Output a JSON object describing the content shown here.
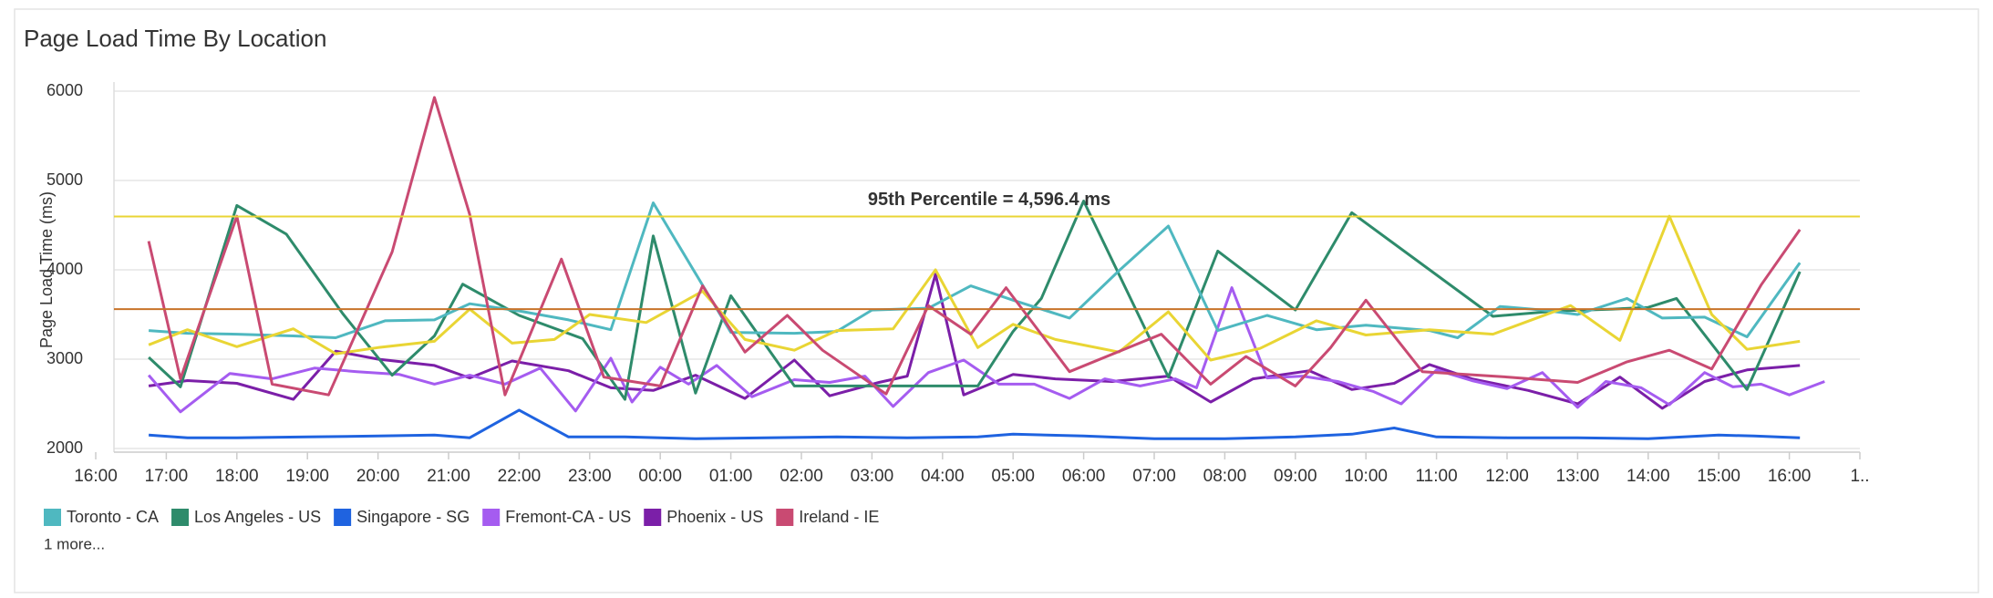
{
  "chart_data": {
    "type": "line",
    "title": "Page Load Time By Location",
    "ylabel": "Page Load Time (ms)",
    "xlim": [
      16,
      41
    ],
    "ylim": [
      2000,
      6000
    ],
    "yticks": [
      2000,
      3000,
      4000,
      5000,
      6000
    ],
    "xticks": [
      {
        "value": 16,
        "label": "16:00"
      },
      {
        "value": 17,
        "label": "17:00"
      },
      {
        "value": 18,
        "label": "18:00"
      },
      {
        "value": 19,
        "label": "19:00"
      },
      {
        "value": 20,
        "label": "20:00"
      },
      {
        "value": 21,
        "label": "21:00"
      },
      {
        "value": 22,
        "label": "22:00"
      },
      {
        "value": 23,
        "label": "23:00"
      },
      {
        "value": 24,
        "label": "00:00"
      },
      {
        "value": 25,
        "label": "01:00"
      },
      {
        "value": 26,
        "label": "02:00"
      },
      {
        "value": 27,
        "label": "03:00"
      },
      {
        "value": 28,
        "label": "04:00"
      },
      {
        "value": 29,
        "label": "05:00"
      },
      {
        "value": 30,
        "label": "06:00"
      },
      {
        "value": 31,
        "label": "07:00"
      },
      {
        "value": 32,
        "label": "08:00"
      },
      {
        "value": 33,
        "label": "09:00"
      },
      {
        "value": 34,
        "label": "10:00"
      },
      {
        "value": 35,
        "label": "11:00"
      },
      {
        "value": 36,
        "label": "12:00"
      },
      {
        "value": 37,
        "label": "13:00"
      },
      {
        "value": 38,
        "label": "14:00"
      },
      {
        "value": 39,
        "label": "15:00"
      },
      {
        "value": 40,
        "label": "16:00"
      },
      {
        "value": 41,
        "label": "1.."
      }
    ],
    "grid": true,
    "reference_lines": [
      {
        "value": 4596.4,
        "color": "#e9d534",
        "label": "95th Percentile = 4,596.4 ms"
      },
      {
        "value": 3560,
        "color": "#c8732a"
      }
    ],
    "legend_more": "1 more...",
    "series": [
      {
        "name": "Toronto - CA",
        "color": "#4fb8c0",
        "x": [
          16.75,
          17.3,
          18.0,
          18.8,
          19.4,
          20.1,
          20.8,
          21.3,
          22.0,
          22.7,
          23.3,
          23.9,
          25.0,
          25.9,
          26.5,
          27.0,
          27.8,
          28.4,
          29.0,
          29.8,
          30.5,
          31.2,
          31.9,
          32.6,
          33.3,
          34.0,
          34.9,
          35.3,
          35.9,
          36.5,
          37.0,
          37.7,
          38.2,
          38.8,
          39.4,
          40.15
        ],
        "values": [
          3320,
          3290,
          3280,
          3260,
          3240,
          3430,
          3440,
          3620,
          3540,
          3440,
          3330,
          4750,
          3300,
          3290,
          3310,
          3550,
          3570,
          3820,
          3660,
          3460,
          3990,
          4490,
          3320,
          3490,
          3330,
          3380,
          3320,
          3240,
          3590,
          3550,
          3500,
          3680,
          3460,
          3470,
          3250,
          4080
        ]
      },
      {
        "name": "Los Angeles - US",
        "color": "#2e8b6b",
        "x": [
          16.75,
          17.2,
          18.0,
          18.7,
          19.5,
          20.2,
          20.8,
          21.2,
          22.0,
          22.9,
          23.5,
          23.9,
          24.5,
          25.0,
          25.9,
          26.8,
          28.0,
          28.5,
          29.0,
          29.4,
          30.0,
          31.2,
          31.9,
          33.0,
          33.8,
          35.8,
          36.7,
          37.5,
          38.0,
          38.4,
          39.4,
          40.15
        ],
        "values": [
          3020,
          2690,
          4720,
          4400,
          3510,
          2820,
          3260,
          3840,
          3490,
          3230,
          2550,
          4380,
          2620,
          3710,
          2700,
          2700,
          2700,
          2700,
          3310,
          3680,
          4770,
          2800,
          4210,
          3550,
          4640,
          3480,
          3540,
          3560,
          3580,
          3680,
          2660,
          3980
        ]
      },
      {
        "name": "Singapore - SG",
        "color": "#1f63e0",
        "x": [
          16.75,
          17.3,
          18,
          19,
          20,
          20.8,
          21.3,
          22,
          22.7,
          23.5,
          24.5,
          25.5,
          26.5,
          27.5,
          28.5,
          29,
          30,
          31,
          32,
          33,
          33.8,
          34.4,
          35,
          36,
          37,
          38,
          39,
          39.5,
          40.15
        ],
        "values": [
          2150,
          2120,
          2120,
          2130,
          2140,
          2150,
          2120,
          2430,
          2130,
          2130,
          2110,
          2120,
          2130,
          2120,
          2130,
          2160,
          2140,
          2110,
          2110,
          2130,
          2160,
          2230,
          2130,
          2120,
          2120,
          2110,
          2150,
          2140,
          2120
        ]
      },
      {
        "name": "Fremont-CA - US",
        "color": "#a55cf0",
        "x": [
          16.75,
          17.2,
          17.9,
          18.5,
          19.1,
          19.7,
          20.3,
          20.8,
          21.3,
          21.8,
          22.3,
          22.8,
          23.3,
          23.6,
          24.0,
          24.4,
          24.8,
          25.3,
          25.9,
          26.4,
          26.9,
          27.3,
          27.8,
          28.3,
          28.8,
          29.3,
          29.8,
          30.3,
          30.8,
          31.3,
          31.6,
          32.1,
          32.6,
          33.1,
          33.6,
          34.1,
          34.5,
          35.0,
          35.5,
          36.0,
          36.5,
          37.0,
          37.4,
          37.9,
          38.3,
          38.8,
          39.2,
          39.6,
          40.0,
          40.5
        ],
        "values": [
          2820,
          2410,
          2840,
          2780,
          2900,
          2860,
          2830,
          2720,
          2820,
          2720,
          2900,
          2420,
          3010,
          2520,
          2910,
          2720,
          2930,
          2580,
          2770,
          2740,
          2810,
          2470,
          2850,
          2990,
          2720,
          2720,
          2560,
          2780,
          2700,
          2780,
          2680,
          3800,
          2790,
          2810,
          2750,
          2640,
          2500,
          2880,
          2760,
          2670,
          2850,
          2460,
          2750,
          2680,
          2490,
          2850,
          2690,
          2720,
          2600,
          2750
        ]
      },
      {
        "name": "Phoenix - US",
        "color": "#7b1fa8",
        "x": [
          16.75,
          17.3,
          18,
          18.8,
          19.4,
          20,
          20.8,
          21.3,
          21.9,
          22.7,
          23.3,
          23.9,
          24.5,
          25.2,
          25.9,
          26.4,
          27.1,
          27.5,
          27.9,
          28.3,
          29.0,
          29.6,
          30.4,
          31.2,
          31.8,
          32.4,
          33.2,
          33.8,
          34.4,
          34.9,
          35.5,
          36.3,
          37.0,
          37.6,
          38.2,
          38.8,
          39.4,
          40.15
        ],
        "values": [
          2700,
          2760,
          2730,
          2550,
          3090,
          3000,
          2930,
          2790,
          2980,
          2870,
          2680,
          2650,
          2820,
          2560,
          2990,
          2590,
          2740,
          2810,
          3950,
          2600,
          2830,
          2780,
          2750,
          2810,
          2520,
          2780,
          2870,
          2660,
          2730,
          2940,
          2780,
          2650,
          2500,
          2800,
          2450,
          2750,
          2880,
          2930
        ]
      },
      {
        "name": "Ireland - IE",
        "color": "#c94a72",
        "x": [
          16.75,
          17.2,
          18.0,
          18.5,
          19.3,
          20.2,
          20.8,
          21.3,
          21.8,
          22.6,
          23.2,
          24.0,
          24.6,
          25.2,
          25.8,
          26.3,
          27.2,
          27.8,
          28.4,
          28.9,
          29.8,
          31.1,
          31.8,
          32.3,
          33.0,
          33.5,
          34.0,
          34.8,
          36.0,
          37.0,
          37.7,
          38.3,
          38.9,
          39.6,
          40.15
        ],
        "values": [
          4320,
          2780,
          4600,
          2720,
          2600,
          4200,
          5930,
          4620,
          2600,
          4120,
          2800,
          2700,
          3820,
          3080,
          3490,
          3100,
          2610,
          3600,
          3280,
          3800,
          2860,
          3280,
          2720,
          3030,
          2700,
          3130,
          3660,
          2860,
          2800,
          2740,
          2970,
          3100,
          2890,
          3830,
          4450
        ]
      },
      {
        "color": "#e9d534",
        "x": [
          16.75,
          17.3,
          18.0,
          18.8,
          19.4,
          20.0,
          20.8,
          21.3,
          21.9,
          22.5,
          23.0,
          23.8,
          24.6,
          25.2,
          25.9,
          26.5,
          27.3,
          27.9,
          28.5,
          29.0,
          29.6,
          30.5,
          31.2,
          31.8,
          32.5,
          33.3,
          34.0,
          34.9,
          35.8,
          36.9,
          37.6,
          38.3,
          38.9,
          39.4,
          40.15
        ],
        "values": [
          3160,
          3330,
          3140,
          3340,
          3060,
          3130,
          3200,
          3560,
          3180,
          3220,
          3500,
          3410,
          3760,
          3220,
          3100,
          3320,
          3340,
          4000,
          3130,
          3390,
          3220,
          3080,
          3530,
          2990,
          3120,
          3430,
          3270,
          3330,
          3280,
          3600,
          3210,
          4600,
          3500,
          3110,
          3200
        ]
      }
    ]
  }
}
